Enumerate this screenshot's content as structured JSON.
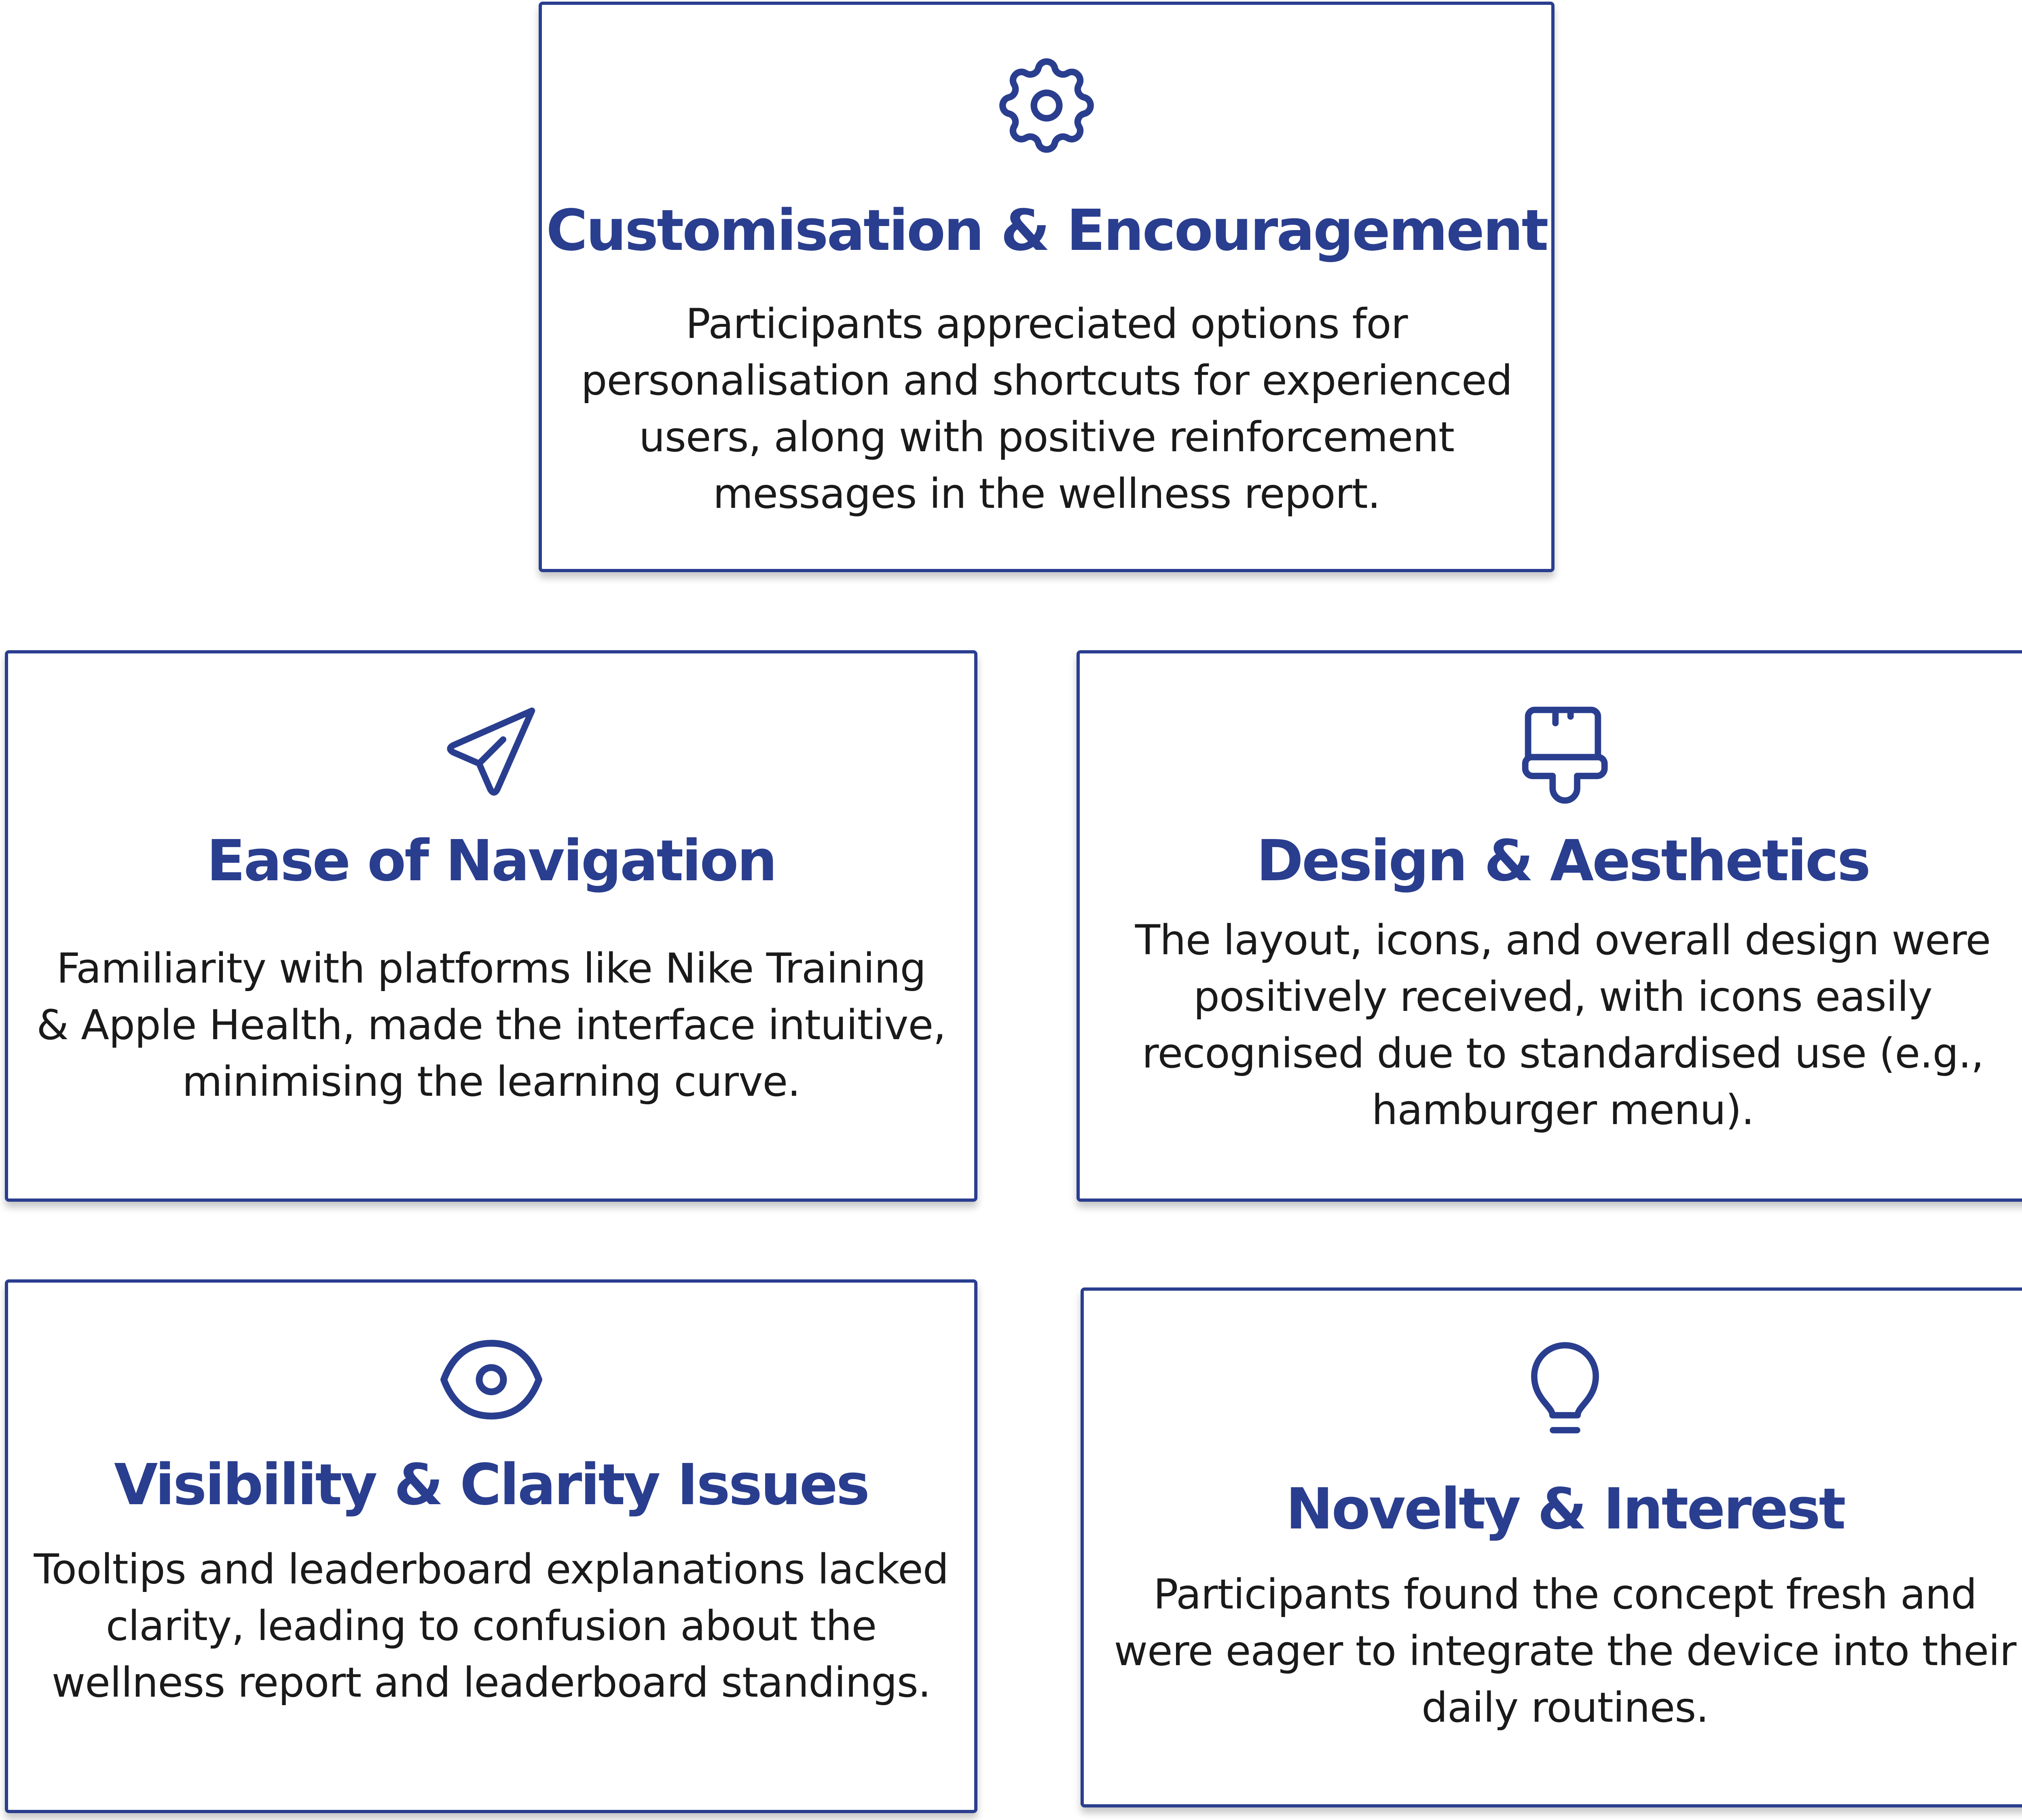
{
  "colors": {
    "accent": "#2a3e8f",
    "text": "#1a1a1a",
    "background": "#ffffff"
  },
  "cards": {
    "customisation": {
      "icon": "gear-icon",
      "title": "Customisation & Encouragement",
      "lines": [
        "Participants appreciated options for",
        "personalisation and shortcuts for experienced",
        "users, along with positive reinforcement",
        "messages in the wellness report."
      ]
    },
    "navigation": {
      "icon": "send-icon",
      "title": "Ease of Navigation",
      "lines": [
        "Familiarity with platforms like Nike Training",
        "& Apple Health, made the interface intuitive,",
        "minimising the learning curve."
      ]
    },
    "design": {
      "icon": "brush-icon",
      "title": "Design & Aesthetics",
      "lines": [
        "The layout, icons, and overall design were",
        "positively received, with icons easily",
        "recognised due to standardised use (e.g.,",
        "hamburger menu)."
      ]
    },
    "visibility": {
      "icon": "eye-icon",
      "title": "Visibility & Clarity Issues",
      "lines": [
        "Tooltips and leaderboard explanations lacked",
        "clarity, leading to confusion about the",
        "wellness report and leaderboard standings."
      ]
    },
    "novelty": {
      "icon": "lightbulb-icon",
      "title": "Novelty & Interest",
      "lines": [
        "Participants found the concept fresh and",
        "were eager to integrate the device into their",
        "daily routines."
      ]
    }
  }
}
